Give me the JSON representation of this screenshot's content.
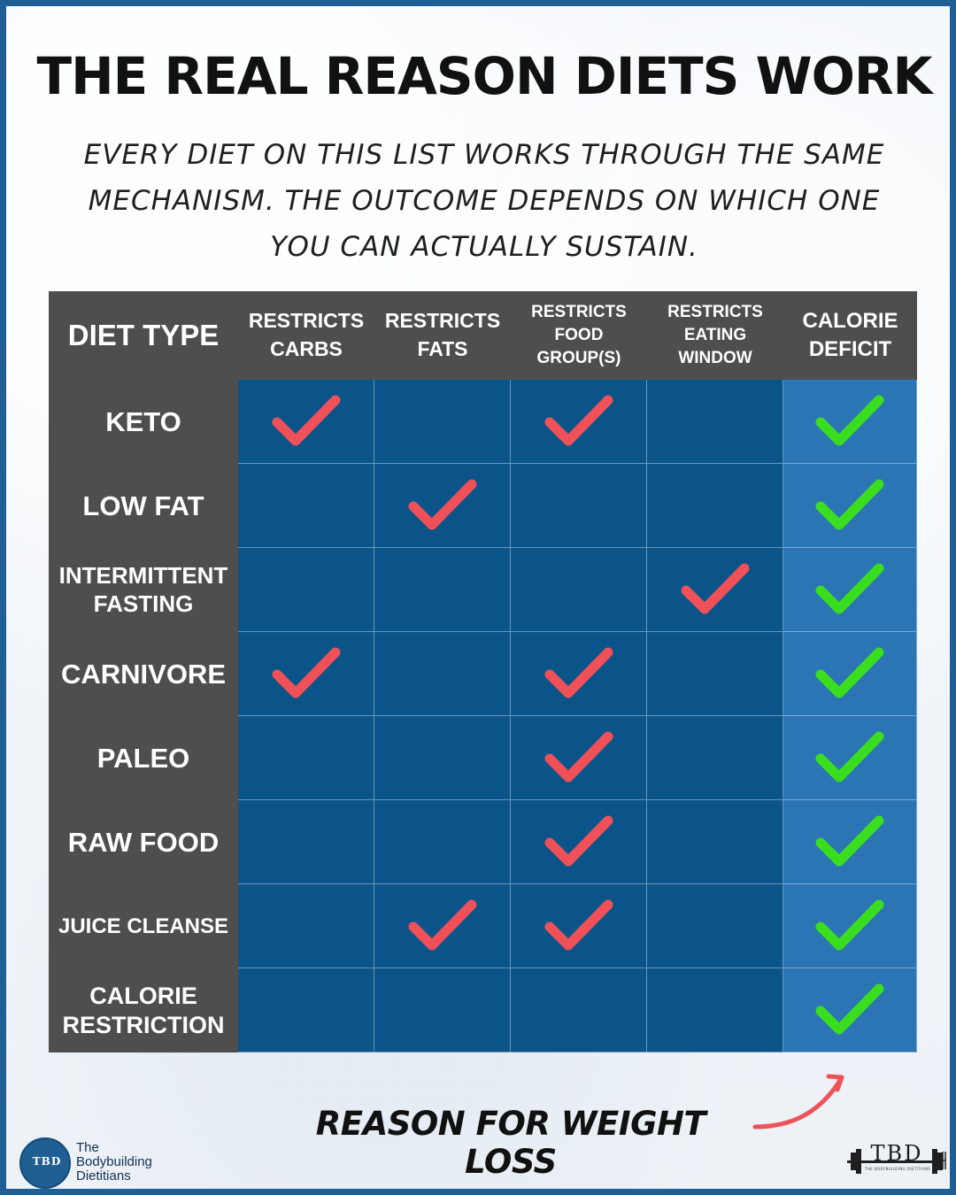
{
  "title": "THE REAL REASON DIETS WORK",
  "subtitle_lines": [
    "EVERY DIET ON THIS LIST WORKS THROUGH THE SAME",
    "MECHANISM. THE OUTCOME DEPENDS ON WHICH ONE",
    "YOU CAN ACTUALLY SUSTAIN."
  ],
  "table": {
    "headers": [
      "DIET TYPE",
      "RESTRICTS\nCARBS",
      "RESTRICTS\nFATS",
      "RESTRICTS\nFOOD\nGROUP(S)",
      "RESTRICTS\nEATING\nWINDOW",
      "CALORIE\nDEFICIT"
    ],
    "rows": [
      {
        "label": "KETO",
        "checks": [
          true,
          false,
          true,
          false,
          true
        ]
      },
      {
        "label": "LOW FAT",
        "checks": [
          false,
          true,
          false,
          false,
          true
        ]
      },
      {
        "label": "INTERMITTENT\nFASTING",
        "checks": [
          false,
          false,
          false,
          true,
          true
        ]
      },
      {
        "label": "CARNIVORE",
        "checks": [
          true,
          false,
          true,
          false,
          true
        ]
      },
      {
        "label": "PALEO",
        "checks": [
          false,
          false,
          true,
          false,
          true
        ]
      },
      {
        "label": "RAW FOOD",
        "checks": [
          false,
          false,
          true,
          false,
          true
        ]
      },
      {
        "label": "JUICE CLEANSE",
        "checks": [
          false,
          true,
          true,
          false,
          true
        ]
      },
      {
        "label": "CALORIE\nRESTRICTION",
        "checks": [
          false,
          false,
          false,
          false,
          true
        ]
      }
    ]
  },
  "footer": {
    "reason_text": "REASON FOR WEIGHT LOSS"
  },
  "branding": {
    "left_logo_circle_text": "TBD",
    "left_logo_lines": [
      "The",
      "Bodybuilding",
      "Dietitians"
    ],
    "right_logo_text": "TBD",
    "right_logo_subtext": "THE BODYBUILDING DIETITIANS"
  },
  "colors": {
    "frame": "#1f5f93",
    "header_gray": "#4e4e4e",
    "table_blue": "#0a548a",
    "deficit_blue": "#2c75b5",
    "check_red": "#f05158",
    "check_green": "#3bde1f",
    "arrow_red": "#ee5259"
  }
}
